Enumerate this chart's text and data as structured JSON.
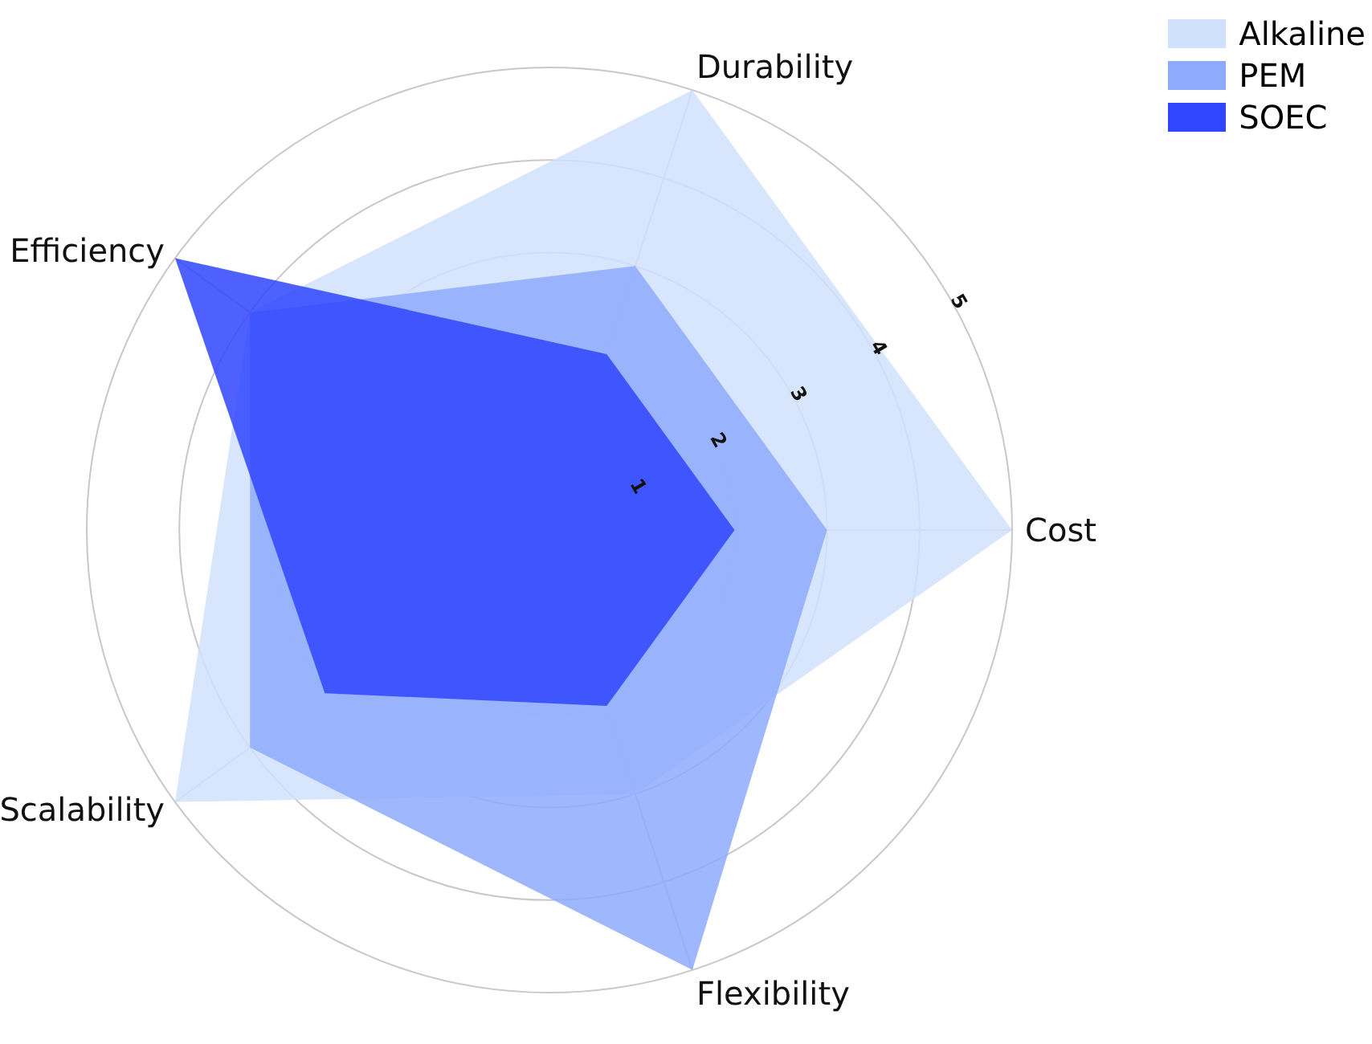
{
  "chart_data": {
    "type": "radar",
    "categories": [
      "Durability",
      "Cost",
      "Flexibility",
      "Scalability",
      "Efficiency"
    ],
    "series": [
      {
        "name": "Alkaline",
        "color": "#d0e1fd",
        "values": [
          5,
          5,
          3,
          5,
          4
        ]
      },
      {
        "name": "PEM",
        "color": "#8eaafb",
        "values": [
          3,
          3,
          5,
          4,
          4
        ]
      },
      {
        "name": "SOEC",
        "color": "#2f45ff",
        "values": [
          2,
          2,
          2,
          3,
          5
        ]
      }
    ],
    "ylim": [
      0,
      5
    ],
    "yticks": [
      1,
      2,
      3,
      4,
      5
    ],
    "grid": true,
    "legend": "top right"
  }
}
